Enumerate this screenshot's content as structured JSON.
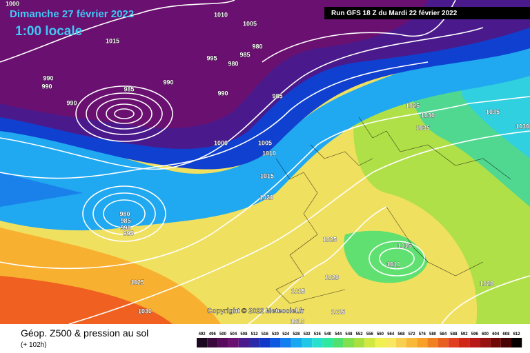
{
  "header": {
    "date": "Dimanche 27 février 2022",
    "time": "1:00 locale",
    "run": "Run GFS 18 Z du Mardi 22 février 2022"
  },
  "copyright": "Copyright © 2022 Meteociel.fr",
  "footer": {
    "title": "Géop. Z500 & pression au sol",
    "lead": "(+ 102h)"
  },
  "isobar_labels": [
    "1000",
    "1010",
    "1005",
    "1015",
    "980",
    "985",
    "995",
    "980",
    "990",
    "990",
    "990",
    "985",
    "990",
    "985",
    "990",
    "1025",
    "1030",
    "1035",
    "1035",
    "1030",
    "1000",
    "1005",
    "1010",
    "1015",
    "1020",
    "980",
    "985",
    "990",
    "995",
    "1025",
    "1015",
    "1010",
    "1020",
    "1025",
    "1015",
    "1020",
    "1030",
    "1015",
    "1010"
  ],
  "legend": {
    "values": [
      492,
      496,
      500,
      504,
      508,
      512,
      516,
      520,
      524,
      528,
      532,
      536,
      540,
      544,
      548,
      552,
      556,
      560,
      564,
      568,
      572,
      576,
      580,
      584,
      588,
      592,
      596,
      600,
      604,
      608,
      612
    ],
    "colors": [
      "#1a0820",
      "#3a0a3c",
      "#560c5a",
      "#6a1070",
      "#4a1a8c",
      "#2a2aa8",
      "#1038c8",
      "#0c58e0",
      "#1080f0",
      "#18a8f0",
      "#20c8e8",
      "#28e0d0",
      "#30e8a0",
      "#50e070",
      "#80e050",
      "#a8e040",
      "#d0e840",
      "#f0f050",
      "#f8e860",
      "#f8d050",
      "#f8b838",
      "#f8a028",
      "#f08020",
      "#e86020",
      "#e04020",
      "#d02818",
      "#b81818",
      "#981010",
      "#700808",
      "#480404",
      "#080000"
    ]
  }
}
